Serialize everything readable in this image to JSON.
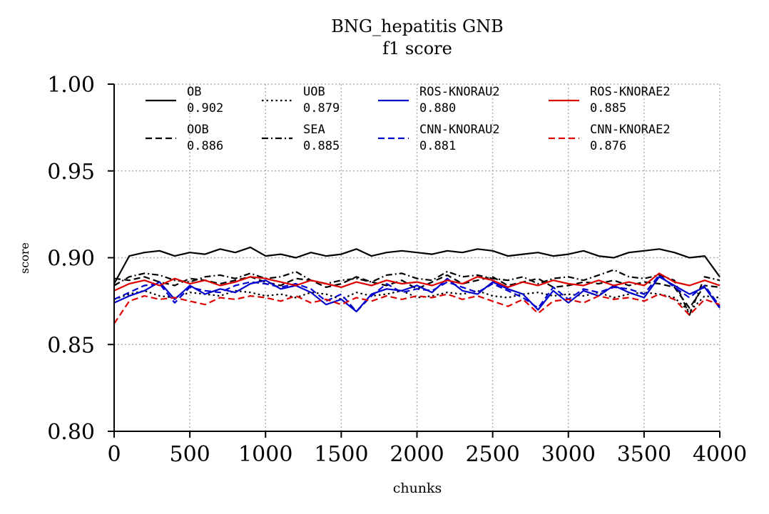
{
  "chart_data": {
    "type": "line",
    "title": "BNG_hepatitis GNB",
    "subtitle": "f1 score",
    "xlabel": "chunks",
    "ylabel": "score",
    "xlim": [
      0,
      4000
    ],
    "ylim": [
      0.8,
      1.0
    ],
    "xticks": [
      0,
      500,
      1000,
      1500,
      2000,
      2500,
      3000,
      3500,
      4000
    ],
    "xtick_labels": [
      "0",
      "500",
      "1000",
      "1500",
      "2000",
      "2500",
      "3000",
      "3500",
      "4000"
    ],
    "yticks": [
      0.8,
      0.85,
      0.9,
      0.95,
      1.0
    ],
    "ytick_labels": [
      "0.80",
      "0.85",
      "0.90",
      "0.95",
      "1.00"
    ],
    "grid": true,
    "legend_position": "top",
    "series": [
      {
        "name": "OB",
        "score": "0.902",
        "color": "#000000",
        "dash": "solid",
        "x": [
          0,
          100,
          200,
          300,
          400,
          500,
          600,
          700,
          800,
          900,
          1000,
          1100,
          1200,
          1300,
          1400,
          1500,
          1600,
          1700,
          1800,
          1900,
          2000,
          2100,
          2200,
          2300,
          2400,
          2500,
          2600,
          2700,
          2800,
          2900,
          3000,
          3100,
          3200,
          3300,
          3400,
          3500,
          3600,
          3700,
          3800,
          3900,
          4000
        ],
        "y": [
          0.885,
          0.901,
          0.903,
          0.904,
          0.901,
          0.903,
          0.902,
          0.905,
          0.903,
          0.906,
          0.901,
          0.902,
          0.9,
          0.903,
          0.901,
          0.902,
          0.905,
          0.901,
          0.903,
          0.904,
          0.903,
          0.902,
          0.904,
          0.903,
          0.905,
          0.904,
          0.901,
          0.902,
          0.903,
          0.901,
          0.902,
          0.904,
          0.901,
          0.9,
          0.903,
          0.904,
          0.905,
          0.903,
          0.9,
          0.901,
          0.889
        ]
      },
      {
        "name": "OOB",
        "score": "0.886",
        "color": "#000000",
        "dash": "dashed",
        "x": [
          0,
          100,
          200,
          300,
          400,
          500,
          600,
          700,
          800,
          900,
          1000,
          1100,
          1200,
          1300,
          1400,
          1500,
          1600,
          1700,
          1800,
          1900,
          2000,
          2100,
          2200,
          2300,
          2400,
          2500,
          2600,
          2700,
          2800,
          2900,
          3000,
          3100,
          3200,
          3300,
          3400,
          3500,
          3600,
          3700,
          3800,
          3900,
          4000
        ],
        "y": [
          0.888,
          0.887,
          0.889,
          0.886,
          0.884,
          0.888,
          0.887,
          0.885,
          0.887,
          0.889,
          0.886,
          0.884,
          0.888,
          0.887,
          0.883,
          0.885,
          0.889,
          0.886,
          0.884,
          0.887,
          0.882,
          0.886,
          0.89,
          0.885,
          0.887,
          0.889,
          0.884,
          0.886,
          0.888,
          0.883,
          0.884,
          0.886,
          0.885,
          0.887,
          0.884,
          0.886,
          0.885,
          0.883,
          0.871,
          0.884,
          0.883
        ]
      },
      {
        "name": "UOB",
        "score": "0.879",
        "color": "#000000",
        "dash": "dotted",
        "x": [
          0,
          100,
          200,
          300,
          400,
          500,
          600,
          700,
          800,
          900,
          1000,
          1100,
          1200,
          1300,
          1400,
          1500,
          1600,
          1700,
          1800,
          1900,
          2000,
          2100,
          2200,
          2300,
          2400,
          2500,
          2600,
          2700,
          2800,
          2900,
          3000,
          3100,
          3200,
          3300,
          3400,
          3500,
          3600,
          3700,
          3800,
          3900,
          4000
        ],
        "y": [
          0.876,
          0.879,
          0.881,
          0.878,
          0.877,
          0.88,
          0.879,
          0.878,
          0.881,
          0.88,
          0.878,
          0.879,
          0.877,
          0.88,
          0.879,
          0.876,
          0.88,
          0.878,
          0.879,
          0.881,
          0.877,
          0.878,
          0.88,
          0.879,
          0.881,
          0.878,
          0.877,
          0.879,
          0.88,
          0.878,
          0.879,
          0.878,
          0.88,
          0.877,
          0.879,
          0.88,
          0.879,
          0.877,
          0.869,
          0.878,
          0.877
        ]
      },
      {
        "name": "SEA",
        "score": "0.885",
        "color": "#000000",
        "dash": "dashdot",
        "x": [
          0,
          100,
          200,
          300,
          400,
          500,
          600,
          700,
          800,
          900,
          1000,
          1100,
          1200,
          1300,
          1400,
          1500,
          1600,
          1700,
          1800,
          1900,
          2000,
          2100,
          2200,
          2300,
          2400,
          2500,
          2600,
          2700,
          2800,
          2900,
          3000,
          3100,
          3200,
          3300,
          3400,
          3500,
          3600,
          3700,
          3800,
          3900,
          4000
        ],
        "y": [
          0.884,
          0.889,
          0.891,
          0.89,
          0.887,
          0.886,
          0.889,
          0.89,
          0.888,
          0.891,
          0.888,
          0.889,
          0.892,
          0.887,
          0.885,
          0.887,
          0.888,
          0.886,
          0.89,
          0.891,
          0.888,
          0.887,
          0.892,
          0.889,
          0.89,
          0.888,
          0.887,
          0.889,
          0.885,
          0.888,
          0.889,
          0.887,
          0.89,
          0.893,
          0.889,
          0.888,
          0.89,
          0.887,
          0.867,
          0.889,
          0.887
        ]
      },
      {
        "name": "ROS-KNORAU2",
        "score": "0.880",
        "color": "#0000cc",
        "dash": "solid",
        "x": [
          0,
          100,
          200,
          300,
          400,
          500,
          600,
          700,
          800,
          900,
          1000,
          1100,
          1200,
          1300,
          1400,
          1500,
          1600,
          1700,
          1800,
          1900,
          2000,
          2100,
          2200,
          2300,
          2400,
          2500,
          2600,
          2700,
          2800,
          2900,
          3000,
          3100,
          3200,
          3300,
          3400,
          3500,
          3600,
          3700,
          3800,
          3900,
          4000
        ],
        "y": [
          0.874,
          0.878,
          0.881,
          0.886,
          0.876,
          0.884,
          0.879,
          0.882,
          0.88,
          0.885,
          0.887,
          0.882,
          0.884,
          0.88,
          0.873,
          0.876,
          0.869,
          0.879,
          0.882,
          0.881,
          0.884,
          0.88,
          0.888,
          0.881,
          0.879,
          0.886,
          0.882,
          0.879,
          0.87,
          0.881,
          0.874,
          0.881,
          0.878,
          0.884,
          0.88,
          0.877,
          0.889,
          0.884,
          0.879,
          0.883,
          0.871
        ]
      },
      {
        "name": "CNN-KNORAU2",
        "score": "0.881",
        "color": "#0000cc",
        "dash": "dashed",
        "x": [
          0,
          100,
          200,
          300,
          400,
          500,
          600,
          700,
          800,
          900,
          1000,
          1100,
          1200,
          1300,
          1400,
          1500,
          1600,
          1700,
          1800,
          1900,
          2000,
          2100,
          2200,
          2300,
          2400,
          2500,
          2600,
          2700,
          2800,
          2900,
          3000,
          3100,
          3200,
          3300,
          3400,
          3500,
          3600,
          3700,
          3800,
          3900,
          4000
        ],
        "y": [
          0.876,
          0.88,
          0.884,
          0.885,
          0.874,
          0.883,
          0.881,
          0.88,
          0.884,
          0.886,
          0.885,
          0.883,
          0.885,
          0.882,
          0.875,
          0.879,
          0.869,
          0.878,
          0.885,
          0.88,
          0.882,
          0.881,
          0.886,
          0.883,
          0.88,
          0.885,
          0.881,
          0.877,
          0.871,
          0.883,
          0.876,
          0.882,
          0.88,
          0.883,
          0.882,
          0.879,
          0.89,
          0.883,
          0.877,
          0.884,
          0.872
        ]
      },
      {
        "name": "ROS-KNORAE2",
        "score": "0.885",
        "color": "#dd0000",
        "dash": "solid",
        "x": [
          0,
          100,
          200,
          300,
          400,
          500,
          600,
          700,
          800,
          900,
          1000,
          1100,
          1200,
          1300,
          1400,
          1500,
          1600,
          1700,
          1800,
          1900,
          2000,
          2100,
          2200,
          2300,
          2400,
          2500,
          2600,
          2700,
          2800,
          2900,
          3000,
          3100,
          3200,
          3300,
          3400,
          3500,
          3600,
          3700,
          3800,
          3900,
          4000
        ],
        "y": [
          0.881,
          0.885,
          0.887,
          0.884,
          0.888,
          0.885,
          0.887,
          0.884,
          0.886,
          0.889,
          0.888,
          0.886,
          0.884,
          0.887,
          0.885,
          0.883,
          0.886,
          0.884,
          0.887,
          0.885,
          0.886,
          0.884,
          0.887,
          0.885,
          0.889,
          0.887,
          0.883,
          0.886,
          0.884,
          0.887,
          0.885,
          0.884,
          0.887,
          0.884,
          0.886,
          0.884,
          0.891,
          0.886,
          0.884,
          0.887,
          0.884
        ]
      },
      {
        "name": "CNN-KNORAE2",
        "score": "0.876",
        "color": "#dd0000",
        "dash": "dashed",
        "x": [
          0,
          100,
          200,
          300,
          400,
          500,
          600,
          700,
          800,
          900,
          1000,
          1100,
          1200,
          1300,
          1400,
          1500,
          1600,
          1700,
          1800,
          1900,
          2000,
          2100,
          2200,
          2300,
          2400,
          2500,
          2600,
          2700,
          2800,
          2900,
          3000,
          3100,
          3200,
          3300,
          3400,
          3500,
          3600,
          3700,
          3800,
          3900,
          4000
        ],
        "y": [
          0.862,
          0.875,
          0.878,
          0.876,
          0.877,
          0.875,
          0.873,
          0.877,
          0.876,
          0.878,
          0.877,
          0.875,
          0.878,
          0.874,
          0.876,
          0.873,
          0.877,
          0.875,
          0.878,
          0.876,
          0.878,
          0.877,
          0.879,
          0.876,
          0.878,
          0.875,
          0.872,
          0.876,
          0.868,
          0.875,
          0.876,
          0.874,
          0.878,
          0.876,
          0.877,
          0.875,
          0.879,
          0.876,
          0.867,
          0.876,
          0.873
        ]
      }
    ]
  }
}
